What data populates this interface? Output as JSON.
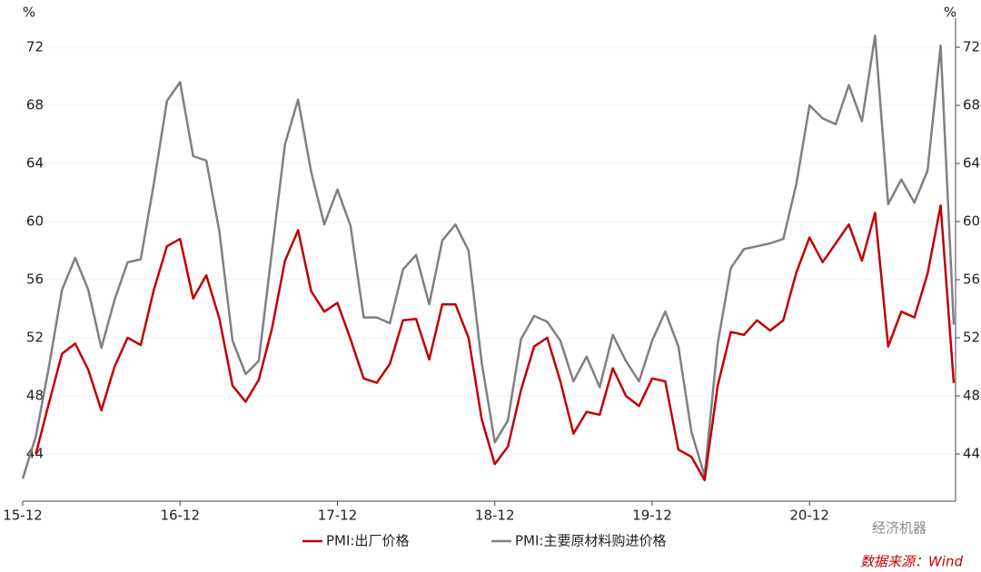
{
  "chart_data": {
    "type": "line",
    "y_unit": "%",
    "y2_unit": "%",
    "categories": [
      "15-12",
      null,
      null,
      null,
      null,
      null,
      null,
      null,
      null,
      null,
      null,
      null,
      "16-12",
      null,
      null,
      null,
      null,
      null,
      null,
      null,
      null,
      null,
      null,
      null,
      "17-12",
      null,
      null,
      null,
      null,
      null,
      null,
      null,
      null,
      null,
      null,
      null,
      "18-12",
      null,
      null,
      null,
      null,
      null,
      null,
      null,
      null,
      null,
      null,
      null,
      "19-12",
      null,
      null,
      null,
      null,
      null,
      null,
      null,
      null,
      null,
      null,
      null,
      "20-12",
      null,
      null,
      null,
      null,
      null,
      null,
      null,
      null,
      null,
      null,
      null
    ],
    "series": [
      {
        "name": "PMI:出厂价格",
        "color": "#c00000",
        "values": [
          null,
          44,
          47.5,
          50.9,
          51.6,
          49.8,
          47,
          50,
          52,
          51.5,
          55.3,
          58.3,
          58.8,
          54.7,
          56.3,
          53.3,
          48.7,
          47.6,
          49.1,
          52.6,
          57.3,
          59.4,
          55.2,
          53.8,
          54.4,
          51.9,
          49.2,
          48.9,
          50.2,
          53.2,
          53.3,
          50.5,
          54.3,
          54.3,
          52,
          46.4,
          43.3,
          44.5,
          48.4,
          51.4,
          52,
          49,
          45.4,
          46.9,
          46.7,
          49.9,
          48,
          47.3,
          49.2,
          49,
          44.3,
          43.8,
          42.2,
          48.7,
          52.4,
          52.2,
          53.2,
          52.5,
          53.2,
          56.5,
          58.9,
          57.2,
          58.5,
          59.8,
          57.3,
          60.6,
          51.4,
          53.8,
          53.4,
          56.4,
          61.1,
          48.9
        ]
      },
      {
        "name": "PMI:主要原材料购进价格",
        "color": "#808080",
        "values": [
          42.3,
          45.2,
          50,
          55.3,
          57.5,
          55.3,
          51.3,
          54.6,
          57.2,
          57.4,
          62.6,
          68.3,
          69.6,
          64.5,
          64.2,
          59.3,
          51.8,
          49.5,
          50.4,
          57.9,
          65.3,
          68.4,
          63.4,
          59.8,
          62.2,
          59.7,
          53.4,
          53.4,
          53,
          56.7,
          57.7,
          54.3,
          58.7,
          59.8,
          58,
          50.3,
          44.8,
          46.3,
          51.9,
          53.5,
          53.1,
          51.8,
          49,
          50.7,
          48.6,
          52.2,
          50.4,
          49,
          51.8,
          53.8,
          51.4,
          45.5,
          42.5,
          51.6,
          56.8,
          58.1,
          58.3,
          58.5,
          58.8,
          62.6,
          68,
          67.1,
          66.7,
          69.4,
          66.9,
          72.8,
          61.2,
          62.9,
          61.3,
          63.5,
          72.1,
          52.9
        ]
      }
    ],
    "ylim": [
      40.75,
      74
    ],
    "yticks": [
      44,
      48,
      52,
      56,
      60,
      64,
      68,
      72
    ],
    "y2lim": [
      40.75,
      74
    ],
    "y2ticks": [
      44,
      48,
      52,
      56,
      60,
      64,
      68,
      72
    ],
    "grid": true,
    "legend": "bottom",
    "watermark": "经济机器",
    "source": "数据来源：Wind"
  }
}
